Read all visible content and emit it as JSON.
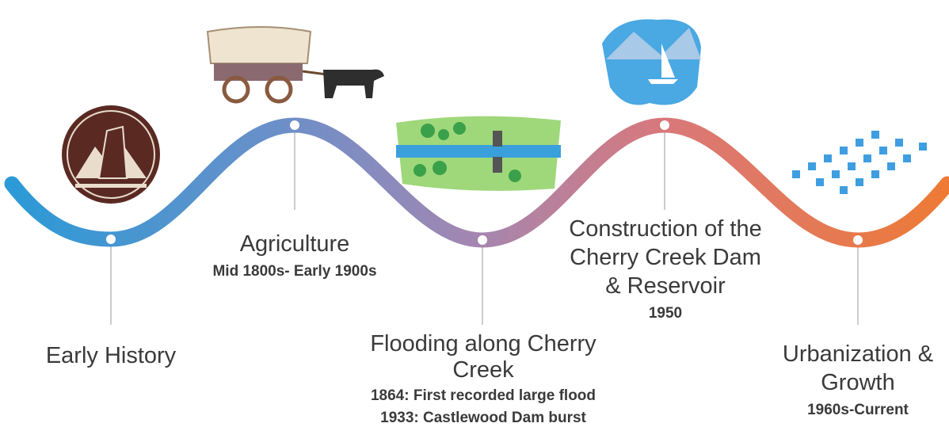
{
  "events": [
    {
      "title": [
        "Early History"
      ],
      "details": []
    },
    {
      "title": [
        "Agriculture"
      ],
      "details": [
        "Mid 1800s- Early 1900s"
      ]
    },
    {
      "title": [
        "Flooding along Cherry",
        "Creek"
      ],
      "details": [
        "1864: First recorded large flood",
        "1933: Castlewood Dam burst"
      ]
    },
    {
      "title": [
        "Construction of the",
        "Cherry Creek Dam",
        "& Reservoir"
      ],
      "details": [
        "1950"
      ]
    },
    {
      "title": [
        "Urbanization &",
        "Growth"
      ],
      "details": [
        "1960s-Current"
      ]
    }
  ]
}
